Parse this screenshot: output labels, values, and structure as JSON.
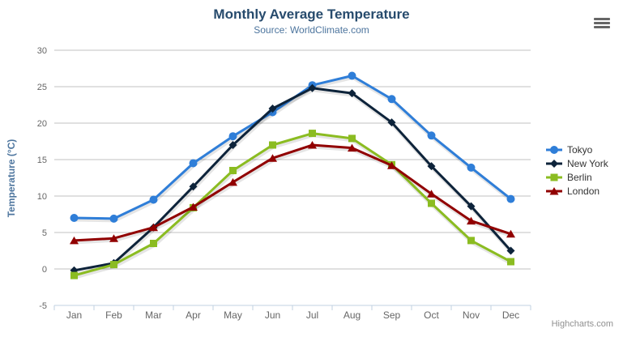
{
  "header": {
    "title": "Monthly Average Temperature",
    "subtitle": "Source: WorldClimate.com"
  },
  "credit": {
    "label": "Highcharts.com"
  },
  "export_menu": {
    "icon": "hamburger-icon"
  },
  "colors": {
    "title_text": "#274b6d",
    "subtitle_text": "#4d759e",
    "grid_line": "#c0c0c0",
    "axis_line": "#c0d0e0",
    "axis_label_text": "#666666",
    "legend_text": "#333333",
    "credit_text": "#909090",
    "menu_icon": "#666666"
  },
  "chart_data": {
    "type": "line",
    "title": "Monthly Average Temperature",
    "subtitle": "Source: WorldClimate.com",
    "categories": [
      "Jan",
      "Feb",
      "Mar",
      "Apr",
      "May",
      "Jun",
      "Jul",
      "Aug",
      "Sep",
      "Oct",
      "Nov",
      "Dec"
    ],
    "series": [
      {
        "name": "Tokyo",
        "color": "#2f7ed8",
        "marker": "circle",
        "values": [
          7.0,
          6.9,
          9.5,
          14.5,
          18.2,
          21.5,
          25.2,
          26.5,
          23.3,
          18.3,
          13.9,
          9.6
        ]
      },
      {
        "name": "New York",
        "color": "#0d233a",
        "marker": "diamond",
        "values": [
          -0.2,
          0.8,
          5.7,
          11.3,
          17.0,
          22.0,
          24.8,
          24.1,
          20.1,
          14.1,
          8.6,
          2.5
        ]
      },
      {
        "name": "Berlin",
        "color": "#8bbc21",
        "marker": "square",
        "values": [
          -0.9,
          0.6,
          3.5,
          8.4,
          13.5,
          17.0,
          18.6,
          17.9,
          14.3,
          9.0,
          3.9,
          1.0
        ]
      },
      {
        "name": "London",
        "color": "#910000",
        "marker": "triangle",
        "values": [
          3.9,
          4.2,
          5.7,
          8.5,
          11.9,
          15.2,
          17.0,
          16.6,
          14.2,
          10.3,
          6.6,
          4.8
        ]
      }
    ],
    "xlabel": "",
    "ylabel": "Temperature (°C)",
    "ylim": [
      -5,
      30
    ],
    "ytick_step": 5,
    "grid": true,
    "legend_position": "right"
  }
}
